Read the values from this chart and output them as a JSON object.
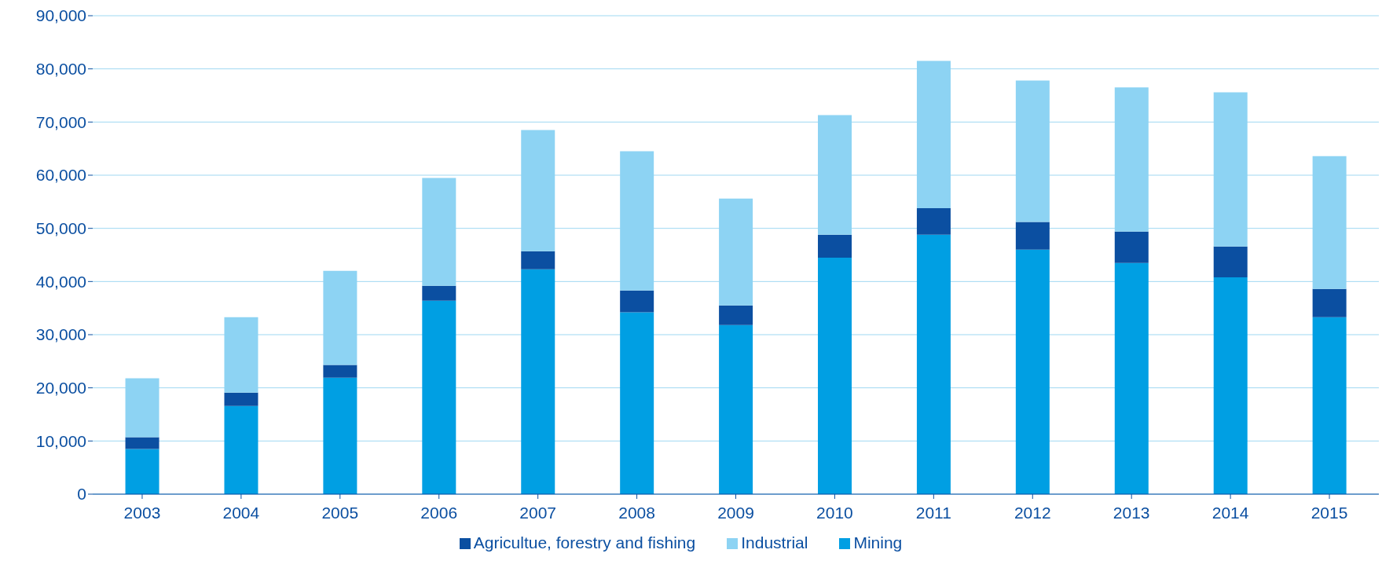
{
  "chart_data": {
    "type": "bar",
    "stacked": true,
    "categories": [
      "2003",
      "2004",
      "2005",
      "2006",
      "2007",
      "2008",
      "2009",
      "2010",
      "2011",
      "2012",
      "2013",
      "2014",
      "2015"
    ],
    "series": [
      {
        "name": "Mining",
        "color": "#009fe3",
        "values": [
          8500,
          16600,
          21900,
          36400,
          42300,
          34200,
          31800,
          44500,
          48800,
          46000,
          43500,
          40800,
          33300
        ]
      },
      {
        "name": "Agricultue, forestry and fishing",
        "color": "#0b4fa1",
        "values": [
          2200,
          2500,
          2400,
          2800,
          3400,
          4100,
          3700,
          4300,
          5000,
          5200,
          5900,
          5800,
          5300
        ]
      },
      {
        "name": "Industrial",
        "color": "#8dd3f3",
        "values": [
          11100,
          14200,
          17700,
          20300,
          22800,
          26200,
          20100,
          22500,
          27700,
          26600,
          27100,
          29000,
          25000
        ]
      }
    ],
    "ylim": [
      0,
      90000
    ],
    "yticks": [
      0,
      {
        "value": 10000,
        "label": "10,000"
      },
      {
        "value": 20000,
        "label": "20,000"
      },
      {
        "value": 30000,
        "label": "30,000"
      },
      {
        "value": 40000,
        "label": "40,000"
      },
      {
        "value": 50000,
        "label": "50,000"
      },
      {
        "value": 60000,
        "label": "60,000"
      },
      {
        "value": 70000,
        "label": "70,000"
      },
      {
        "value": 80000,
        "label": "80,000"
      },
      {
        "value": 90000,
        "label": "90,000"
      }
    ],
    "grid": "y",
    "legend": "bottom"
  }
}
